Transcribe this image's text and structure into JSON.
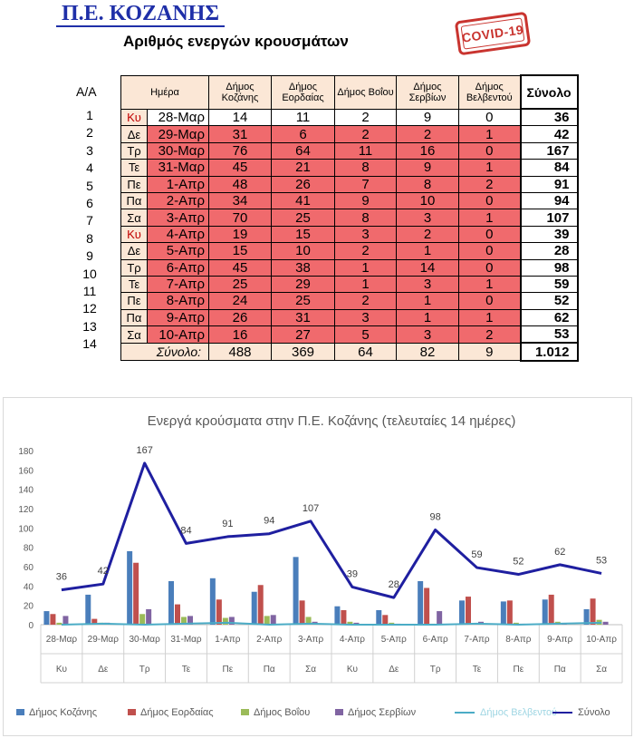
{
  "header": {
    "title": "Π.Ε. ΚΟΖΑΝΗΣ",
    "subtitle": "Αριθμός ενεργών κρουσμάτων",
    "stamp": "COVID-19"
  },
  "table": {
    "index_header": "Α/Α",
    "columns": [
      "Ημέρα",
      "Δήμος Κοζάνης",
      "Δήμος Εορδαίας",
      "Δήμος Βοΐου",
      "Δήμος Σερβίων",
      "Δήμος Βελβεντού",
      "Σύνολο"
    ],
    "rows": [
      {
        "aa": "1",
        "day": "Κυ",
        "date": "28-Μαρ",
        "v": [
          "14",
          "11",
          "2",
          "9",
          "0"
        ],
        "total": "36"
      },
      {
        "aa": "2",
        "day": "Δε",
        "date": "29-Μαρ",
        "v": [
          "31",
          "6",
          "2",
          "2",
          "1"
        ],
        "total": "42"
      },
      {
        "aa": "3",
        "day": "Τρ",
        "date": "30-Μαρ",
        "v": [
          "76",
          "64",
          "11",
          "16",
          "0"
        ],
        "total": "167"
      },
      {
        "aa": "4",
        "day": "Τε",
        "date": "31-Μαρ",
        "v": [
          "45",
          "21",
          "8",
          "9",
          "1"
        ],
        "total": "84"
      },
      {
        "aa": "5",
        "day": "Πε",
        "date": "1-Απρ",
        "v": [
          "48",
          "26",
          "7",
          "8",
          "2"
        ],
        "total": "91"
      },
      {
        "aa": "6",
        "day": "Πα",
        "date": "2-Απρ",
        "v": [
          "34",
          "41",
          "9",
          "10",
          "0"
        ],
        "total": "94"
      },
      {
        "aa": "7",
        "day": "Σα",
        "date": "3-Απρ",
        "v": [
          "70",
          "25",
          "8",
          "3",
          "1"
        ],
        "total": "107"
      },
      {
        "aa": "8",
        "day": "Κυ",
        "date": "4-Απρ",
        "v": [
          "19",
          "15",
          "3",
          "2",
          "0"
        ],
        "total": "39"
      },
      {
        "aa": "9",
        "day": "Δε",
        "date": "5-Απρ",
        "v": [
          "15",
          "10",
          "2",
          "1",
          "0"
        ],
        "total": "28"
      },
      {
        "aa": "10",
        "day": "Τρ",
        "date": "6-Απρ",
        "v": [
          "45",
          "38",
          "1",
          "14",
          "0"
        ],
        "total": "98"
      },
      {
        "aa": "11",
        "day": "Τε",
        "date": "7-Απρ",
        "v": [
          "25",
          "29",
          "1",
          "3",
          "1"
        ],
        "total": "59"
      },
      {
        "aa": "12",
        "day": "Πε",
        "date": "8-Απρ",
        "v": [
          "24",
          "25",
          "2",
          "1",
          "0"
        ],
        "total": "52"
      },
      {
        "aa": "13",
        "day": "Πα",
        "date": "9-Απρ",
        "v": [
          "26",
          "31",
          "3",
          "1",
          "1"
        ],
        "total": "62"
      },
      {
        "aa": "14",
        "day": "Σα",
        "date": "10-Απρ",
        "v": [
          "16",
          "27",
          "5",
          "3",
          "2"
        ],
        "total": "53"
      }
    ],
    "footer": {
      "label": "Σύνολο:",
      "v": [
        "488",
        "369",
        "64",
        "82",
        "9"
      ],
      "total": "1.012"
    }
  },
  "chart_data": {
    "type": "bar",
    "title": "Ενεργά κρούσματα στην Π.Ε. Κοζάνης (τελευταίες 14 ημέρες)",
    "categories": [
      "28-Μαρ",
      "29-Μαρ",
      "30-Μαρ",
      "31-Μαρ",
      "1-Απρ",
      "2-Απρ",
      "3-Απρ",
      "4-Απρ",
      "5-Απρ",
      "6-Απρ",
      "7-Απρ",
      "8-Απρ",
      "9-Απρ",
      "10-Απρ"
    ],
    "day_labels": [
      "Κυ",
      "Δε",
      "Τρ",
      "Τε",
      "Πε",
      "Πα",
      "Σα",
      "Κυ",
      "Δε",
      "Τρ",
      "Τε",
      "Πε",
      "Πα",
      "Σα"
    ],
    "ylim": [
      0,
      180
    ],
    "yticks": [
      0,
      20,
      40,
      60,
      80,
      100,
      120,
      140,
      160,
      180
    ],
    "grid": false,
    "legend": "bottom",
    "series": [
      {
        "name": "Δήμος Κοζάνης",
        "type": "bar",
        "color": "#4a7ebb",
        "values": [
          14,
          31,
          76,
          45,
          48,
          34,
          70,
          19,
          15,
          45,
          25,
          24,
          26,
          16
        ]
      },
      {
        "name": "Δήμος Εορδαίας",
        "type": "bar",
        "color": "#c0504d",
        "values": [
          11,
          6,
          64,
          21,
          26,
          41,
          25,
          15,
          10,
          38,
          29,
          25,
          31,
          27
        ]
      },
      {
        "name": "Δήμος Βοΐου",
        "type": "bar",
        "color": "#9bbb59",
        "values": [
          2,
          2,
          11,
          8,
          7,
          9,
          8,
          3,
          2,
          1,
          1,
          2,
          3,
          5
        ]
      },
      {
        "name": "Δήμος Σερβίων",
        "type": "bar",
        "color": "#8064a2",
        "values": [
          9,
          2,
          16,
          9,
          8,
          10,
          3,
          2,
          1,
          14,
          3,
          1,
          1,
          3
        ]
      },
      {
        "name": "Δήμος Βελβεντού",
        "type": "line",
        "color": "#4bacc6",
        "values": [
          0,
          1,
          0,
          1,
          2,
          0,
          1,
          0,
          0,
          0,
          1,
          0,
          1,
          2
        ]
      },
      {
        "name": "Σύνολο",
        "type": "line",
        "color": "#1f1fa0",
        "values": [
          36,
          42,
          167,
          84,
          91,
          94,
          107,
          39,
          28,
          98,
          59,
          52,
          62,
          53
        ],
        "data_labels": true
      }
    ]
  }
}
